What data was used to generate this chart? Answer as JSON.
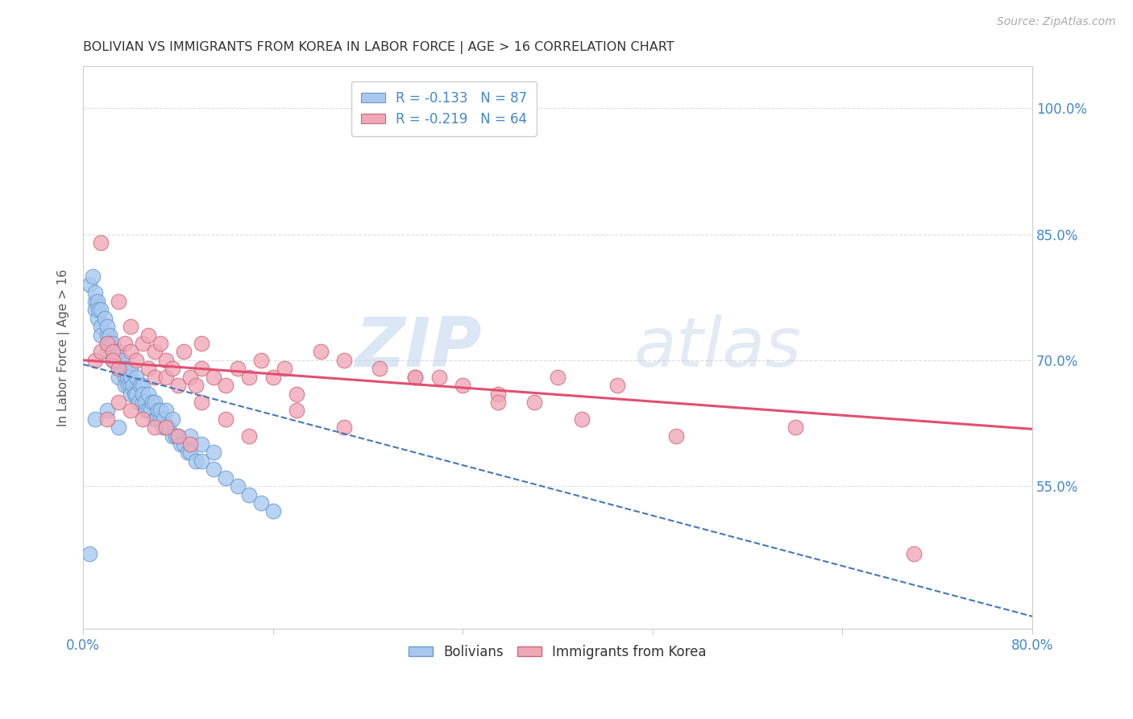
{
  "title": "BOLIVIAN VS IMMIGRANTS FROM KOREA IN LABOR FORCE | AGE > 16 CORRELATION CHART",
  "source": "Source: ZipAtlas.com",
  "ylabel": "In Labor Force | Age > 16",
  "xlim": [
    0.0,
    0.8
  ],
  "ylim": [
    0.38,
    1.05
  ],
  "ytick_labels": [
    "55.0%",
    "70.0%",
    "85.0%",
    "100.0%"
  ],
  "ytick_values": [
    0.55,
    0.7,
    0.85,
    1.0
  ],
  "xtick_values": [
    0.0,
    0.16,
    0.32,
    0.48,
    0.64,
    0.8
  ],
  "legend_entries": [
    {
      "label": "R = -0.133   N = 87",
      "color": "#a8c8f0"
    },
    {
      "label": "R = -0.219   N = 64",
      "color": "#f0a8b8"
    }
  ],
  "bolivians": {
    "color": "#a8c8f0",
    "edge_color": "#6699cc",
    "x": [
      0.005,
      0.008,
      0.01,
      0.01,
      0.01,
      0.012,
      0.012,
      0.013,
      0.015,
      0.015,
      0.015,
      0.018,
      0.02,
      0.02,
      0.02,
      0.02,
      0.022,
      0.023,
      0.025,
      0.025,
      0.025,
      0.027,
      0.028,
      0.03,
      0.03,
      0.03,
      0.03,
      0.032,
      0.033,
      0.035,
      0.035,
      0.035,
      0.037,
      0.038,
      0.04,
      0.04,
      0.04,
      0.04,
      0.042,
      0.043,
      0.045,
      0.045,
      0.047,
      0.048,
      0.05,
      0.05,
      0.05,
      0.052,
      0.053,
      0.055,
      0.055,
      0.057,
      0.058,
      0.06,
      0.06,
      0.062,
      0.063,
      0.065,
      0.065,
      0.067,
      0.068,
      0.07,
      0.07,
      0.072,
      0.075,
      0.075,
      0.078,
      0.08,
      0.082,
      0.085,
      0.088,
      0.09,
      0.09,
      0.095,
      0.1,
      0.1,
      0.11,
      0.11,
      0.12,
      0.13,
      0.14,
      0.15,
      0.16,
      0.01,
      0.02,
      0.03,
      0.005
    ],
    "y": [
      0.79,
      0.8,
      0.77,
      0.78,
      0.76,
      0.75,
      0.77,
      0.76,
      0.74,
      0.76,
      0.73,
      0.75,
      0.73,
      0.74,
      0.72,
      0.71,
      0.73,
      0.72,
      0.71,
      0.7,
      0.72,
      0.7,
      0.71,
      0.7,
      0.69,
      0.71,
      0.68,
      0.69,
      0.7,
      0.68,
      0.69,
      0.67,
      0.68,
      0.67,
      0.67,
      0.68,
      0.66,
      0.69,
      0.67,
      0.66,
      0.66,
      0.68,
      0.65,
      0.67,
      0.65,
      0.67,
      0.66,
      0.65,
      0.64,
      0.64,
      0.66,
      0.64,
      0.65,
      0.63,
      0.65,
      0.63,
      0.64,
      0.63,
      0.64,
      0.62,
      0.63,
      0.62,
      0.64,
      0.62,
      0.61,
      0.63,
      0.61,
      0.61,
      0.6,
      0.6,
      0.59,
      0.59,
      0.61,
      0.58,
      0.58,
      0.6,
      0.57,
      0.59,
      0.56,
      0.55,
      0.54,
      0.53,
      0.52,
      0.63,
      0.64,
      0.62,
      0.47
    ]
  },
  "koreans": {
    "color": "#f0a8b8",
    "edge_color": "#cc6677",
    "x": [
      0.01,
      0.015,
      0.015,
      0.02,
      0.025,
      0.025,
      0.03,
      0.03,
      0.035,
      0.04,
      0.04,
      0.045,
      0.05,
      0.055,
      0.055,
      0.06,
      0.06,
      0.065,
      0.07,
      0.07,
      0.075,
      0.08,
      0.085,
      0.09,
      0.095,
      0.1,
      0.1,
      0.11,
      0.12,
      0.13,
      0.14,
      0.15,
      0.16,
      0.17,
      0.18,
      0.2,
      0.22,
      0.25,
      0.28,
      0.3,
      0.32,
      0.35,
      0.38,
      0.4,
      0.45,
      0.02,
      0.03,
      0.04,
      0.05,
      0.06,
      0.07,
      0.08,
      0.09,
      0.1,
      0.12,
      0.14,
      0.18,
      0.22,
      0.28,
      0.35,
      0.42,
      0.5,
      0.6,
      0.7
    ],
    "y": [
      0.7,
      0.71,
      0.84,
      0.72,
      0.71,
      0.7,
      0.69,
      0.77,
      0.72,
      0.71,
      0.74,
      0.7,
      0.72,
      0.73,
      0.69,
      0.71,
      0.68,
      0.72,
      0.7,
      0.68,
      0.69,
      0.67,
      0.71,
      0.68,
      0.67,
      0.69,
      0.72,
      0.68,
      0.67,
      0.69,
      0.68,
      0.7,
      0.68,
      0.69,
      0.66,
      0.71,
      0.7,
      0.69,
      0.68,
      0.68,
      0.67,
      0.66,
      0.65,
      0.68,
      0.67,
      0.63,
      0.65,
      0.64,
      0.63,
      0.62,
      0.62,
      0.61,
      0.6,
      0.65,
      0.63,
      0.61,
      0.64,
      0.62,
      0.68,
      0.65,
      0.63,
      0.61,
      0.62,
      0.47
    ]
  },
  "trendline_bolivians": {
    "color": "#4477bb",
    "x_start": 0.0,
    "x_end": 0.8,
    "y_start": 0.695,
    "y_end": 0.395,
    "style": "--"
  },
  "trendline_koreans": {
    "color": "#e05070",
    "x_start": 0.0,
    "x_end": 0.8,
    "y_start": 0.7,
    "y_end": 0.618,
    "style": "-"
  },
  "watermark_zip": "ZIP",
  "watermark_atlas": "atlas",
  "background_color": "#ffffff",
  "grid_color": "#dddddd",
  "title_color": "#333333",
  "axis_color": "#4488cc",
  "label_color": "#555555"
}
